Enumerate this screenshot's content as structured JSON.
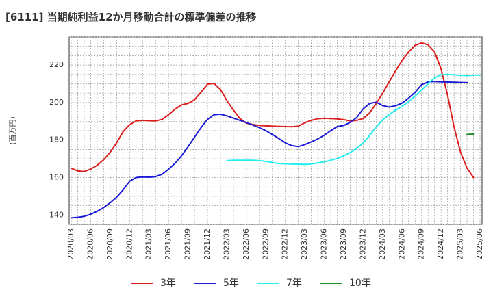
{
  "chart_data": {
    "type": "line",
    "title": "[6111]  当期純利益12か月移動合計の標準偏差の推移",
    "ylabel": "(百万円)",
    "xlabel": "",
    "ylim": [
      135,
      235
    ],
    "yticks": [
      140,
      160,
      180,
      200,
      220
    ],
    "xticks": [
      "2020/03",
      "2020/06",
      "2020/09",
      "2020/12",
      "2021/03",
      "2021/06",
      "2021/09",
      "2021/12",
      "2022/03",
      "2022/06",
      "2022/09",
      "2022/12",
      "2023/03",
      "2023/06",
      "2023/09",
      "2023/12",
      "2024/03",
      "2024/06",
      "2024/09",
      "2024/12",
      "2025/03",
      "2025/06"
    ],
    "grid": true,
    "legend_position": "bottom",
    "series": [
      {
        "name": "3年",
        "color": "#dd1c1c",
        "start_index": 0,
        "values": [
          165.0,
          163.5,
          163.2,
          164.5,
          166.5,
          169.5,
          173.5,
          178.5,
          184.5,
          188.2,
          190.2,
          190.5,
          190.3,
          190.2,
          191.0,
          193.5,
          196.5,
          198.8,
          199.5,
          201.5,
          205.5,
          209.8,
          210.2,
          207.0,
          201.0,
          196.0,
          191.5,
          189.0,
          188.3,
          187.8,
          187.6,
          187.4,
          187.3,
          187.2,
          187.1,
          187.4,
          189.2,
          190.5,
          191.4,
          191.6,
          191.5,
          191.3,
          190.9,
          190.2,
          190.5,
          191.5,
          194.5,
          199.5,
          205.0,
          211.0,
          217.0,
          222.5,
          227.0,
          230.5,
          231.8,
          230.8,
          227.0,
          218.0,
          204.0,
          187.0,
          173.5,
          165.0,
          160.0
        ]
      },
      {
        "name": "5年",
        "color": "#1a1ad6",
        "start_index": 0,
        "values": [
          138.5,
          138.8,
          139.3,
          140.4,
          142.0,
          144.0,
          146.5,
          149.5,
          153.4,
          158.0,
          160.0,
          160.3,
          160.2,
          160.5,
          161.7,
          164.4,
          167.6,
          171.6,
          176.4,
          181.5,
          186.6,
          191.0,
          193.5,
          193.8,
          192.9,
          191.7,
          190.5,
          189.3,
          188.0,
          186.6,
          185.0,
          183.0,
          180.8,
          178.5,
          177.0,
          176.5,
          177.6,
          179.0,
          180.6,
          182.6,
          185.0,
          187.2,
          187.8,
          189.4,
          192.0,
          196.7,
          199.5,
          200.2,
          198.4,
          197.6,
          198.3,
          199.7,
          202.4,
          205.5,
          209.5,
          211.0,
          211.2,
          211.0,
          210.9,
          210.8,
          210.7,
          210.6
        ]
      },
      {
        "name": "7年",
        "color": "#22eeee",
        "start_index": 24,
        "values": [
          169.0,
          169.2,
          169.2,
          169.2,
          169.2,
          169.0,
          168.6,
          168.0,
          167.5,
          167.3,
          167.2,
          167.1,
          167.0,
          167.2,
          167.8,
          168.4,
          169.2,
          170.2,
          171.6,
          173.3,
          175.5,
          178.5,
          182.5,
          187.0,
          190.8,
          193.5,
          196.0,
          198.0,
          200.5,
          203.5,
          206.7,
          210.0,
          213.2,
          214.8,
          215.0,
          214.8,
          214.5,
          214.4,
          214.6,
          214.7
        ]
      },
      {
        "name": "10年",
        "color": "#228b22",
        "start_index": 61,
        "values": [
          183.0,
          183.2
        ]
      }
    ]
  }
}
